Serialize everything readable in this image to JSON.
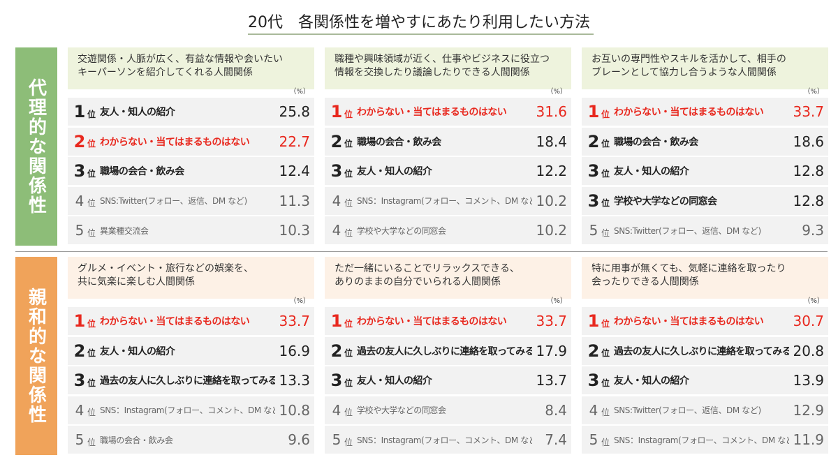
{
  "title": "20代　各関係性を増やすにあたり利用したい方法",
  "rank_suffix": "位",
  "unit": "（%）",
  "highlight": {
    "label": "わからない・当てはまるものはない",
    "color": "#e8281e"
  },
  "sections": [
    {
      "label": "代理的な関係性",
      "color": "#8dbd78",
      "header_color": "#eef3dd",
      "panels": [
        {
          "header": [
            "交遊関係・人脈が広く、有益な情報や会いたい",
            "キーパーソンを紹介してくれる人間関係"
          ],
          "rows": [
            {
              "rank": 1,
              "label": "友人・知人の紹介",
              "value": 25.8
            },
            {
              "rank": 2,
              "label": "わからない・当てはまるものはない",
              "value": 22.7
            },
            {
              "rank": 3,
              "label": "職場の会合・飲み会",
              "value": 12.4
            },
            {
              "rank": 4,
              "label": "SNS:Twitter(フォロー、返信、DM など)",
              "value": 11.3
            },
            {
              "rank": 5,
              "label": "異業種交流会",
              "value": 10.3
            }
          ]
        },
        {
          "header": [
            "職種や興味領域が近く、仕事やビジネスに役立つ",
            "情報を交換したり議論したりできる人間関係"
          ],
          "rows": [
            {
              "rank": 1,
              "label": "わからない・当てはまるものはない",
              "value": 31.6
            },
            {
              "rank": 2,
              "label": "職場の会合・飲み会",
              "value": 18.4
            },
            {
              "rank": 3,
              "label": "友人・知人の紹介",
              "value": 12.2
            },
            {
              "rank": 4,
              "label": "SNS：Instagram(フォロー、コメント、DM など)",
              "value": 10.2
            },
            {
              "rank": 4,
              "label": "学校や大学などの同窓会",
              "value": 10.2
            }
          ]
        },
        {
          "header": [
            "お互いの専門性やスキルを活かして、相手の",
            "ブレーンとして協力し合うような人間関係"
          ],
          "rows": [
            {
              "rank": 1,
              "label": "わからない・当てはまるものはない",
              "value": 33.7
            },
            {
              "rank": 2,
              "label": "職場の会合・飲み会",
              "value": 18.6
            },
            {
              "rank": 3,
              "label": "友人・知人の紹介",
              "value": 12.8
            },
            {
              "rank": 3,
              "label": "学校や大学などの同窓会",
              "value": 12.8
            },
            {
              "rank": 5,
              "label": "SNS:Twitter(フォロー、返信、DM など)",
              "value": 9.3
            }
          ]
        }
      ]
    },
    {
      "label": "親和的な関係性",
      "color": "#f0a35a",
      "header_color": "#fdf1e6",
      "panels": [
        {
          "header": [
            "グルメ・イベント・旅行などの娯楽を、",
            "共に気楽に楽しむ人間関係"
          ],
          "rows": [
            {
              "rank": 1,
              "label": "わからない・当てはまるものはない",
              "value": 33.7
            },
            {
              "rank": 2,
              "label": "友人・知人の紹介",
              "value": 16.9
            },
            {
              "rank": 3,
              "label": "過去の友人に久しぶりに連絡を取ってみる",
              "value": 13.3
            },
            {
              "rank": 4,
              "label": "SNS：Instagram(フォロー、コメント、DM など)",
              "value": 10.8
            },
            {
              "rank": 5,
              "label": "職場の会合・飲み会",
              "value": 9.6
            }
          ]
        },
        {
          "header": [
            "ただ一緒にいることでリラックスできる、",
            "ありのままの自分でいられる人間関係"
          ],
          "rows": [
            {
              "rank": 1,
              "label": "わからない・当てはまるものはない",
              "value": 33.7
            },
            {
              "rank": 2,
              "label": "過去の友人に久しぶりに連絡を取ってみる",
              "value": 17.9
            },
            {
              "rank": 3,
              "label": "友人・知人の紹介",
              "value": 13.7
            },
            {
              "rank": 4,
              "label": "学校や大学などの同窓会",
              "value": 8.4
            },
            {
              "rank": 5,
              "label": "SNS：Instagram(フォロー、コメント、DM など)",
              "value": 7.4
            }
          ]
        },
        {
          "header": [
            "特に用事が無くても、気軽に連絡を取ったり",
            "会ったりできる人間関係"
          ],
          "rows": [
            {
              "rank": 1,
              "label": "わからない・当てはまるものはない",
              "value": 30.7
            },
            {
              "rank": 2,
              "label": "過去の友人に久しぶりに連絡を取ってみる",
              "value": 20.8
            },
            {
              "rank": 3,
              "label": "友人・知人の紹介",
              "value": 13.9
            },
            {
              "rank": 4,
              "label": "SNS:Twitter(フォロー、返信、DM など)",
              "value": 12.9
            },
            {
              "rank": 5,
              "label": "SNS：Instagram(フォロー、コメント、DM など)",
              "value": 11.9
            }
          ]
        }
      ]
    }
  ]
}
